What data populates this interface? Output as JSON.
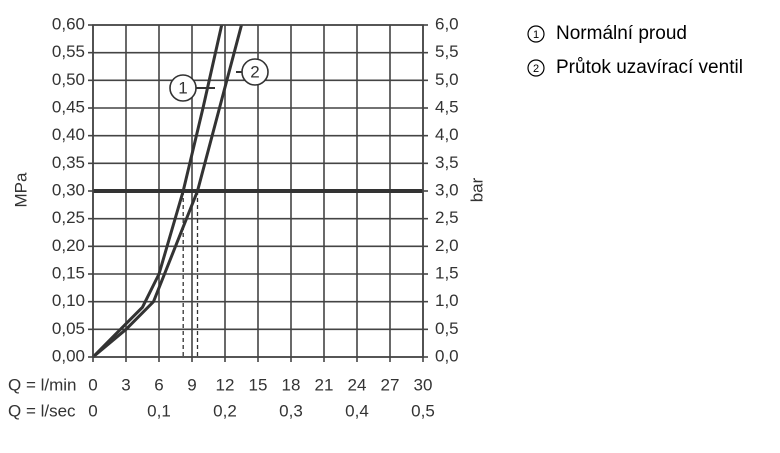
{
  "chart_data": {
    "type": "line",
    "xlabel": "Q = l/min",
    "x2label": "Q = l/sec",
    "ylabel": "MPa",
    "y2label": "bar",
    "xlim": [
      0,
      30
    ],
    "xticks": [
      0,
      3,
      6,
      9,
      12,
      15,
      18,
      21,
      24,
      27,
      30
    ],
    "x2lim": [
      0,
      0.5
    ],
    "x2ticks": [
      0,
      {
        "value": 0.1,
        "label": "0,1"
      },
      {
        "value": 0.2,
        "label": "0,2"
      },
      {
        "value": 0.3,
        "label": "0,3"
      },
      {
        "value": 0.4,
        "label": "0,4"
      },
      {
        "value": 0.5,
        "label": "0,5"
      }
    ],
    "ylim": [
      0,
      0.6
    ],
    "yticks": [
      {
        "value": 0,
        "label": "0,00"
      },
      {
        "value": 0.05,
        "label": "0,05"
      },
      {
        "value": 0.1,
        "label": "0,10"
      },
      {
        "value": 0.15,
        "label": "0,15"
      },
      {
        "value": 0.2,
        "label": "0,20"
      },
      {
        "value": 0.25,
        "label": "0,25"
      },
      {
        "value": 0.3,
        "label": "0,30"
      },
      {
        "value": 0.35,
        "label": "0,35"
      },
      {
        "value": 0.4,
        "label": "0,40"
      },
      {
        "value": 0.45,
        "label": "0,45"
      },
      {
        "value": 0.5,
        "label": "0,50"
      },
      {
        "value": 0.55,
        "label": "0,55"
      },
      {
        "value": 0.6,
        "label": "0,60"
      }
    ],
    "y2lim": [
      0,
      6
    ],
    "y2ticks": [
      {
        "value": 0,
        "label": "0,0"
      },
      {
        "value": 0.5,
        "label": "0,5"
      },
      {
        "value": 1,
        "label": "1,0"
      },
      {
        "value": 1.5,
        "label": "1,5"
      },
      {
        "value": 2,
        "label": "2,0"
      },
      {
        "value": 2.5,
        "label": "2,5"
      },
      {
        "value": 3,
        "label": "3,0"
      },
      {
        "value": 3.5,
        "label": "3,5"
      },
      {
        "value": 4,
        "label": "4,0"
      },
      {
        "value": 4.5,
        "label": "4,5"
      },
      {
        "value": 5,
        "label": "5,0"
      },
      {
        "value": 5.5,
        "label": "5,5"
      },
      {
        "value": 6,
        "label": "6,0"
      }
    ],
    "grid": true,
    "highlight_y": 0.3,
    "series": [
      {
        "name": "Normální proud",
        "marker": "1",
        "color": "#333333",
        "x": [
          0,
          2,
          4.5,
          6,
          8.2,
          10,
          11.7
        ],
        "values": [
          0,
          0.04,
          0.09,
          0.15,
          0.3,
          0.45,
          0.6
        ]
      },
      {
        "name": "Průtok uzavírací ventil",
        "marker": "2",
        "color": "#333333",
        "x": [
          0,
          3,
          5.5,
          7.5,
          9.5,
          11.5,
          13.5
        ],
        "values": [
          0,
          0.05,
          0.1,
          0.2,
          0.3,
          0.45,
          0.6
        ]
      }
    ]
  }
}
